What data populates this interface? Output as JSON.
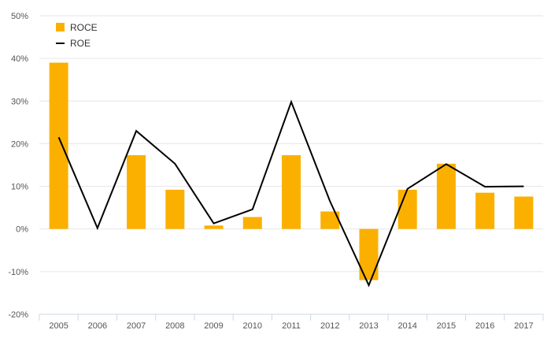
{
  "chart_data": {
    "type": "bar+line",
    "categories": [
      "2005",
      "2006",
      "2007",
      "2008",
      "2009",
      "2010",
      "2011",
      "2012",
      "2013",
      "2014",
      "2015",
      "2016",
      "2017"
    ],
    "series": [
      {
        "name": "ROCE",
        "type": "bar",
        "color": "#FBB000",
        "values": [
          39,
          null,
          17.3,
          9.2,
          0.8,
          2.8,
          17.3,
          4.1,
          -12,
          9.2,
          15.3,
          8.5,
          7.6
        ]
      },
      {
        "name": "ROE",
        "type": "line",
        "color": "#000000",
        "values": [
          21.5,
          0.2,
          23,
          15.3,
          1.3,
          4.6,
          29.8,
          6.5,
          -13.2,
          9.4,
          15.2,
          9.9,
          10
        ]
      }
    ],
    "ylim": [
      -20,
      50
    ],
    "yticks": [
      -20,
      -10,
      0,
      10,
      20,
      30,
      40,
      50
    ],
    "ytick_labels": [
      "-20%",
      "-10%",
      "0%",
      "10%",
      "20%",
      "30%",
      "40%",
      "50%"
    ],
    "grid": true,
    "legend": "top-left"
  }
}
